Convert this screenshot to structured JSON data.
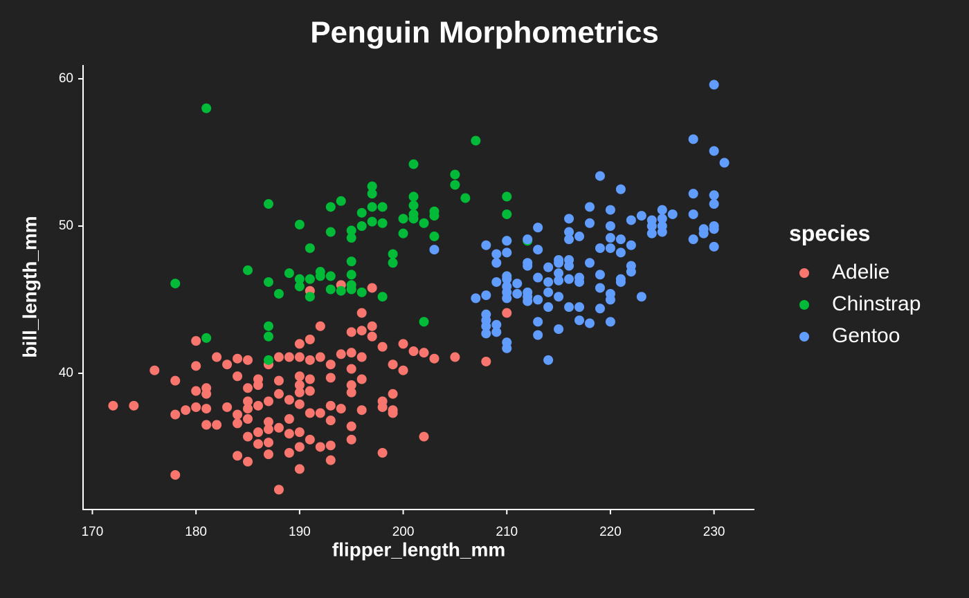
{
  "chart_data": {
    "type": "scatter",
    "title": "Penguin Morphometrics",
    "x_label": "flipper_length_mm",
    "y_label": "bill_length_mm",
    "legend_title": "species",
    "xlim": [
      169.1,
      233.9
    ],
    "ylim": [
      30.75,
      60.94
    ],
    "xticks": [
      170,
      180,
      190,
      200,
      210,
      220,
      230
    ],
    "yticks": [
      40,
      50,
      60
    ],
    "grid": false,
    "legend_position": "right",
    "series": [
      {
        "name": "Adelie",
        "color": "#F8766D",
        "x": [
          172,
          174,
          176,
          178,
          178,
          178,
          179,
          180,
          180,
          180,
          180,
          181,
          181,
          181,
          181,
          182,
          182,
          183,
          183,
          184,
          184,
          184,
          184,
          184,
          185,
          185,
          185,
          185,
          185,
          185,
          185,
          186,
          186,
          186,
          186,
          186,
          187,
          187,
          187,
          187,
          187,
          187,
          188,
          188,
          188,
          188,
          188,
          189,
          189,
          189,
          189,
          189,
          190,
          190,
          190,
          190,
          190,
          190,
          190,
          190,
          190,
          191,
          191,
          191,
          191,
          191,
          191,
          191,
          192,
          192,
          192,
          192,
          193,
          193,
          193,
          193,
          193,
          193,
          194,
          194,
          194,
          195,
          195,
          195,
          195,
          195,
          195,
          195,
          196,
          196,
          196,
          196,
          196,
          197,
          197,
          197,
          198,
          198,
          198,
          198,
          199,
          199,
          199,
          199,
          200,
          200,
          201,
          202,
          202,
          203,
          205,
          208,
          210
        ],
        "y": [
          37.8,
          37.8,
          40.2,
          39.5,
          37.2,
          33.1,
          37.5,
          42.2,
          40.5,
          38.8,
          37.7,
          39.0,
          38.6,
          37.6,
          36.5,
          41.1,
          36.5,
          40.6,
          37.7,
          41.0,
          39.8,
          37.2,
          36.6,
          34.4,
          40.9,
          39.0,
          38.1,
          37.6,
          36.9,
          35.7,
          34.0,
          39.6,
          39.2,
          37.8,
          36.0,
          35.2,
          40.6,
          38.1,
          36.7,
          36.2,
          35.3,
          34.5,
          41.1,
          39.5,
          38.6,
          36.3,
          32.1,
          41.1,
          38.2,
          36.9,
          35.9,
          34.6,
          42.0,
          41.1,
          39.8,
          39.2,
          38.7,
          37.9,
          36.0,
          35.0,
          33.5,
          45.6,
          42.3,
          40.9,
          39.6,
          38.8,
          37.3,
          35.5,
          43.2,
          41.1,
          37.3,
          35.0,
          40.6,
          39.7,
          37.8,
          36.8,
          35.1,
          34.1,
          46.0,
          41.3,
          37.6,
          42.8,
          41.4,
          40.3,
          39.2,
          38.7,
          36.4,
          35.5,
          44.1,
          42.9,
          41.1,
          39.6,
          37.5,
          45.8,
          43.2,
          42.5,
          41.8,
          38.1,
          37.7,
          34.6,
          40.6,
          38.6,
          37.5,
          37.3,
          42.0,
          40.2,
          41.5,
          41.4,
          35.7,
          41.0,
          41.1,
          40.8,
          44.1
        ]
      },
      {
        "name": "Chinstrap",
        "color": "#00BA38",
        "x": [
          178,
          181,
          181,
          185,
          187,
          187,
          187,
          187,
          187,
          188,
          189,
          190,
          190,
          190,
          191,
          191,
          191,
          192,
          192,
          193,
          193,
          193,
          193,
          194,
          194,
          195,
          195,
          195,
          195,
          195,
          195,
          196,
          196,
          196,
          197,
          197,
          197,
          197,
          198,
          198,
          198,
          199,
          199,
          200,
          200,
          201,
          201,
          201,
          201,
          201,
          202,
          202,
          203,
          203,
          203,
          205,
          205,
          206,
          207,
          210,
          210,
          210,
          212
        ],
        "y": [
          46.1,
          58.0,
          42.4,
          47.0,
          51.5,
          46.2,
          43.2,
          42.5,
          40.9,
          45.4,
          46.8,
          50.1,
          46.4,
          45.9,
          48.5,
          46.4,
          45.2,
          46.9,
          46.6,
          51.3,
          49.6,
          46.6,
          45.7,
          51.7,
          45.6,
          49.7,
          49.2,
          47.6,
          46.7,
          46.0,
          45.7,
          50.9,
          50.0,
          45.5,
          52.7,
          52.2,
          51.3,
          50.3,
          51.3,
          50.2,
          45.2,
          48.1,
          47.5,
          50.5,
          49.5,
          54.2,
          52.0,
          51.4,
          50.8,
          50.5,
          50.2,
          43.5,
          51.0,
          50.7,
          49.3,
          53.5,
          52.8,
          51.9,
          55.8,
          52.0,
          50.8,
          49.0,
          49.0
        ]
      },
      {
        "name": "Gentoo",
        "color": "#619CFF",
        "x": [
          203,
          207,
          208,
          208,
          208,
          208,
          208,
          208,
          209,
          209,
          209,
          209,
          209,
          210,
          210,
          210,
          210,
          210,
          210,
          210,
          210,
          210,
          211,
          211,
          212,
          212,
          212,
          212,
          212,
          212,
          213,
          213,
          213,
          213,
          213,
          213,
          214,
          214,
          214,
          214,
          214,
          215,
          215,
          215,
          215,
          215,
          215,
          216,
          216,
          216,
          216,
          216,
          216,
          216,
          217,
          217,
          217,
          217,
          217,
          218,
          218,
          218,
          218,
          219,
          219,
          219,
          219,
          219,
          220,
          220,
          220,
          220,
          220,
          220,
          220,
          221,
          221,
          221,
          221,
          221,
          222,
          222,
          222,
          222,
          223,
          223,
          224,
          224,
          224,
          225,
          225,
          225,
          225,
          226,
          228,
          228,
          228,
          228,
          229,
          229,
          230,
          230,
          230,
          230,
          230,
          230,
          230,
          231
        ],
        "y": [
          48.4,
          45.1,
          48.7,
          45.3,
          44.0,
          43.6,
          43.2,
          42.7,
          48.1,
          47.5,
          46.2,
          43.3,
          42.8,
          49.0,
          48.2,
          46.6,
          46.4,
          45.9,
          45.5,
          45.1,
          42.1,
          41.7,
          46.1,
          45.4,
          49.1,
          47.5,
          47.3,
          45.5,
          45.2,
          44.9,
          49.9,
          48.4,
          46.5,
          45.0,
          43.5,
          42.6,
          47.2,
          46.2,
          45.5,
          44.5,
          40.9,
          47.7,
          47.5,
          46.8,
          46.3,
          45.2,
          43.0,
          50.5,
          49.6,
          49.1,
          47.7,
          47.3,
          46.4,
          44.5,
          49.3,
          46.5,
          46.2,
          44.5,
          43.6,
          51.3,
          50.2,
          47.5,
          43.4,
          53.4,
          48.5,
          46.7,
          45.8,
          44.4,
          51.1,
          50.0,
          49.2,
          48.5,
          45.4,
          45.0,
          43.5,
          52.5,
          49.1,
          46.4,
          46.2,
          48.2,
          50.4,
          48.7,
          47.3,
          46.9,
          50.7,
          45.2,
          50.4,
          50.0,
          49.5,
          51.1,
          50.5,
          50.0,
          49.6,
          50.8,
          55.9,
          52.2,
          50.8,
          49.1,
          49.8,
          49.5,
          59.6,
          55.1,
          52.1,
          51.5,
          50.0,
          49.8,
          48.6,
          54.3
        ]
      }
    ]
  }
}
